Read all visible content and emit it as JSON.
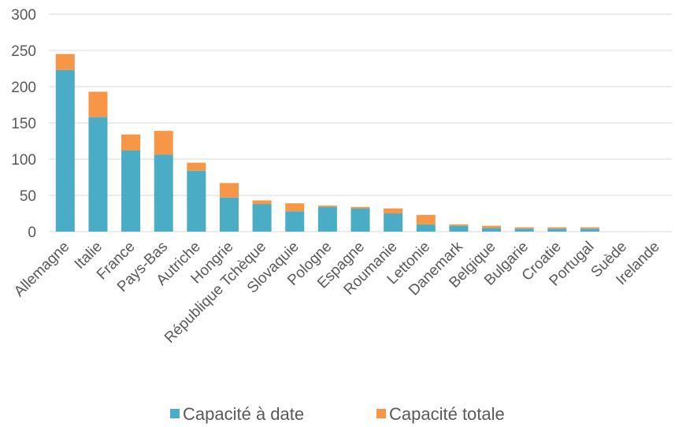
{
  "chart_data": {
    "type": "bar",
    "stacked": true,
    "categories": [
      "Allemagne",
      "Italie",
      "France",
      "Pays-Bas",
      "Autriche",
      "Hongrie",
      "République Tchèque",
      "Slovaquie",
      "Pologne",
      "Espagne",
      "Roumanie",
      "Lettonie",
      "Danemark",
      "Belgique",
      "Bulgarie",
      "Croatie",
      "Portugal",
      "Suède",
      "Irelande"
    ],
    "series": [
      {
        "name": "Capacité à date",
        "color": "#4BACC6",
        "values": [
          223,
          158,
          112,
          106,
          84,
          47,
          38,
          28,
          34,
          32,
          25,
          10,
          8,
          5,
          4,
          4,
          4,
          0,
          0
        ]
      },
      {
        "name": "Capacité totale",
        "color": "#F79646",
        "values": [
          22,
          35,
          22,
          33,
          11,
          20,
          5,
          11,
          2,
          2,
          7,
          13,
          2,
          3,
          2,
          2,
          2,
          0,
          0
        ]
      }
    ],
    "yticks": [
      0,
      50,
      100,
      150,
      200,
      250,
      300
    ],
    "ylim": [
      0,
      300
    ],
    "grid": true,
    "legend_position": "bottom",
    "title": "",
    "xlabel": "",
    "ylabel": ""
  }
}
